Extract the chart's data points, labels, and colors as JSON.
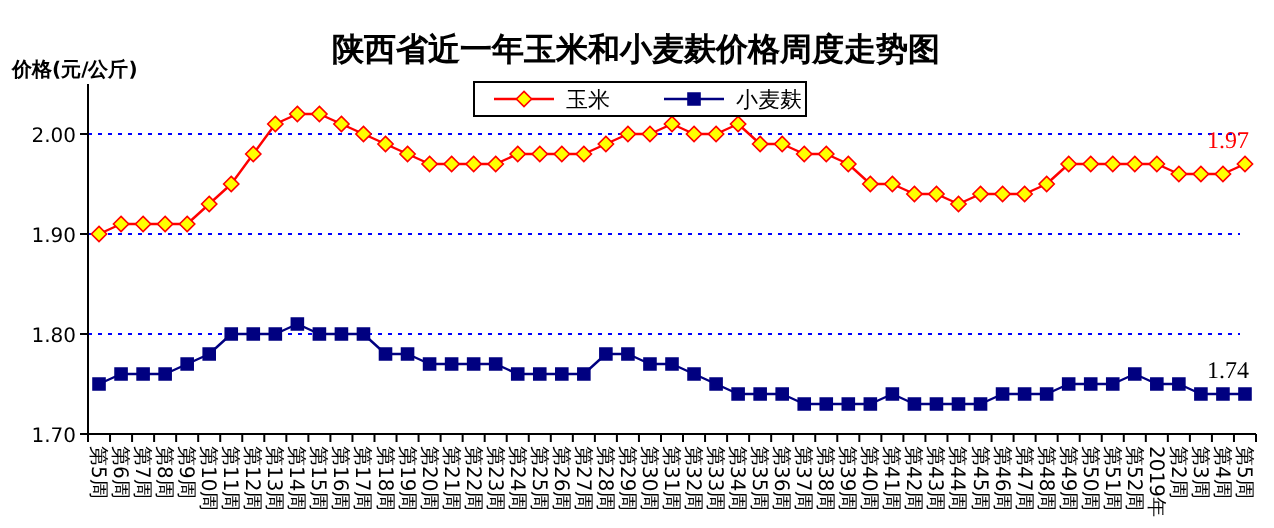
{
  "chart_data": {
    "type": "line",
    "title": "陕西省近一年玉米和小麦麸价格周度走势图",
    "ylabel": "价格(元/公斤)",
    "categories": [
      "第5周",
      "第6周",
      "第7周",
      "第8周",
      "第9周",
      "第10周",
      "第11周",
      "第12周",
      "第13周",
      "第14周",
      "第15周",
      "第16周",
      "第17周",
      "第18周",
      "第19周",
      "第20周",
      "第21周",
      "第22周",
      "第23周",
      "第24周",
      "第25周",
      "第26周",
      "第27周",
      "第28周",
      "第29周",
      "第30周",
      "第31周",
      "第32周",
      "第33周",
      "第34周",
      "第35周",
      "第36周",
      "第37周",
      "第38周",
      "第39周",
      "第40周",
      "第41周",
      "第42周",
      "第43周",
      "第44周",
      "第45周",
      "第46周",
      "第47周",
      "第48周",
      "第49周",
      "第50周",
      "第51周",
      "第52周",
      "2019年",
      "第2周",
      "第3周",
      "第4周",
      "第5周"
    ],
    "series": [
      {
        "name": "玉米",
        "color": "#ff0000",
        "marker": "diamond",
        "values": [
          1.9,
          1.91,
          1.91,
          1.91,
          1.91,
          1.93,
          1.95,
          1.98,
          2.01,
          2.02,
          2.02,
          2.01,
          2.0,
          1.99,
          1.98,
          1.97,
          1.97,
          1.97,
          1.97,
          1.98,
          1.98,
          1.98,
          1.98,
          1.99,
          2.0,
          2.0,
          2.01,
          2.0,
          2.0,
          2.01,
          1.99,
          1.99,
          1.98,
          1.98,
          1.97,
          1.95,
          1.95,
          1.94,
          1.94,
          1.93,
          1.94,
          1.94,
          1.94,
          1.95,
          1.97,
          1.97,
          1.97,
          1.97,
          1.97,
          1.96,
          1.96,
          1.96,
          1.97
        ],
        "value_labels": [
          null,
          null,
          null,
          null,
          null,
          null,
          null,
          null,
          null,
          null,
          null,
          null,
          null,
          null,
          null,
          null,
          null,
          null,
          null,
          null,
          null,
          null,
          null,
          null,
          null,
          null,
          null,
          null,
          null,
          null,
          null,
          null,
          null,
          null,
          null,
          null,
          null,
          null,
          null,
          null,
          null,
          null,
          null,
          null,
          null,
          null,
          null,
          null,
          null,
          null,
          null,
          null,
          "1.97"
        ]
      },
      {
        "name": "小麦麸",
        "color": "#000080",
        "marker": "square",
        "values": [
          1.75,
          1.76,
          1.76,
          1.76,
          1.77,
          1.78,
          1.8,
          1.8,
          1.8,
          1.81,
          1.8,
          1.8,
          1.8,
          1.78,
          1.78,
          1.77,
          1.77,
          1.77,
          1.77,
          1.76,
          1.76,
          1.76,
          1.76,
          1.78,
          1.78,
          1.77,
          1.77,
          1.76,
          1.75,
          1.74,
          1.74,
          1.74,
          1.73,
          1.73,
          1.73,
          1.73,
          1.74,
          1.73,
          1.73,
          1.73,
          1.73,
          1.74,
          1.74,
          1.74,
          1.75,
          1.75,
          1.75,
          1.76,
          1.75,
          1.75,
          1.74,
          1.74,
          1.74
        ],
        "value_labels": [
          null,
          null,
          null,
          null,
          null,
          null,
          null,
          null,
          null,
          null,
          null,
          null,
          null,
          null,
          null,
          null,
          null,
          null,
          null,
          null,
          null,
          null,
          null,
          null,
          null,
          null,
          null,
          null,
          null,
          null,
          null,
          null,
          null,
          null,
          null,
          null,
          null,
          null,
          null,
          null,
          null,
          null,
          null,
          null,
          null,
          null,
          null,
          null,
          null,
          null,
          null,
          null,
          "1.74"
        ]
      }
    ],
    "ylim": [
      1.7,
      2.05
    ],
    "yticks": [
      {
        "value": 1.7,
        "label": "1.70"
      },
      {
        "value": 1.8,
        "label": "1.80"
      },
      {
        "value": 1.9,
        "label": "1.90"
      },
      {
        "value": 2.0,
        "label": "2.00"
      }
    ],
    "grid": "y",
    "legend": "top"
  }
}
